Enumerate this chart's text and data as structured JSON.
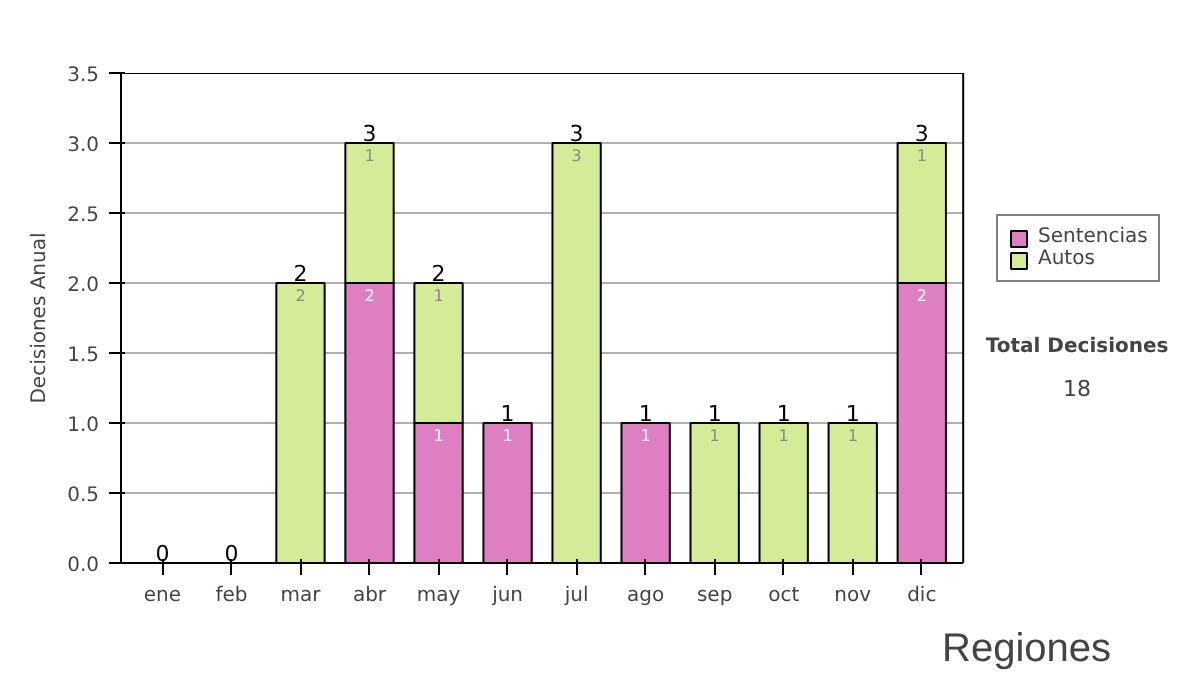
{
  "chart_data": {
    "type": "bar",
    "stacked": true,
    "ylabel": "Decisiones Anual",
    "categories": [
      "ene",
      "feb",
      "mar",
      "abr",
      "may",
      "jun",
      "jul",
      "ago",
      "sep",
      "oct",
      "nov",
      "dic"
    ],
    "series": [
      {
        "name": "Sentencias",
        "color": "#dd7fc0",
        "values": [
          0,
          0,
          0,
          2,
          1,
          1,
          0,
          1,
          0,
          0,
          0,
          2
        ],
        "value_labels": [
          null,
          null,
          null,
          "2",
          "1",
          "1",
          null,
          "1",
          null,
          null,
          null,
          "2"
        ]
      },
      {
        "name": "Autos",
        "color": "#d4ec98",
        "values": [
          0,
          0,
          2,
          1,
          1,
          0,
          3,
          0,
          1,
          1,
          1,
          1
        ],
        "value_labels": [
          null,
          null,
          "2",
          "1",
          "1",
          null,
          "3",
          null,
          "1",
          "1",
          "1",
          "1"
        ]
      }
    ],
    "totals": [
      "0",
      "0",
      "2",
      "3",
      "2",
      "1",
      "3",
      "1",
      "1",
      "1",
      "1",
      "3"
    ],
    "ylim": [
      0,
      3.5
    ],
    "yticks": [
      {
        "value": 0,
        "label": "0.0"
      },
      {
        "value": 0.5,
        "label": "0.5"
      },
      {
        "value": 1,
        "label": "1.0"
      },
      {
        "value": 1.5,
        "label": "1.5"
      },
      {
        "value": 2,
        "label": "2.0"
      },
      {
        "value": 2.5,
        "label": "2.5"
      },
      {
        "value": 3,
        "label": "3.0"
      },
      {
        "value": 3.5,
        "label": "3.5"
      }
    ],
    "grid": "y",
    "legend": "right",
    "annotations": [
      "Total Decisiones",
      "18",
      "Regiones"
    ]
  }
}
